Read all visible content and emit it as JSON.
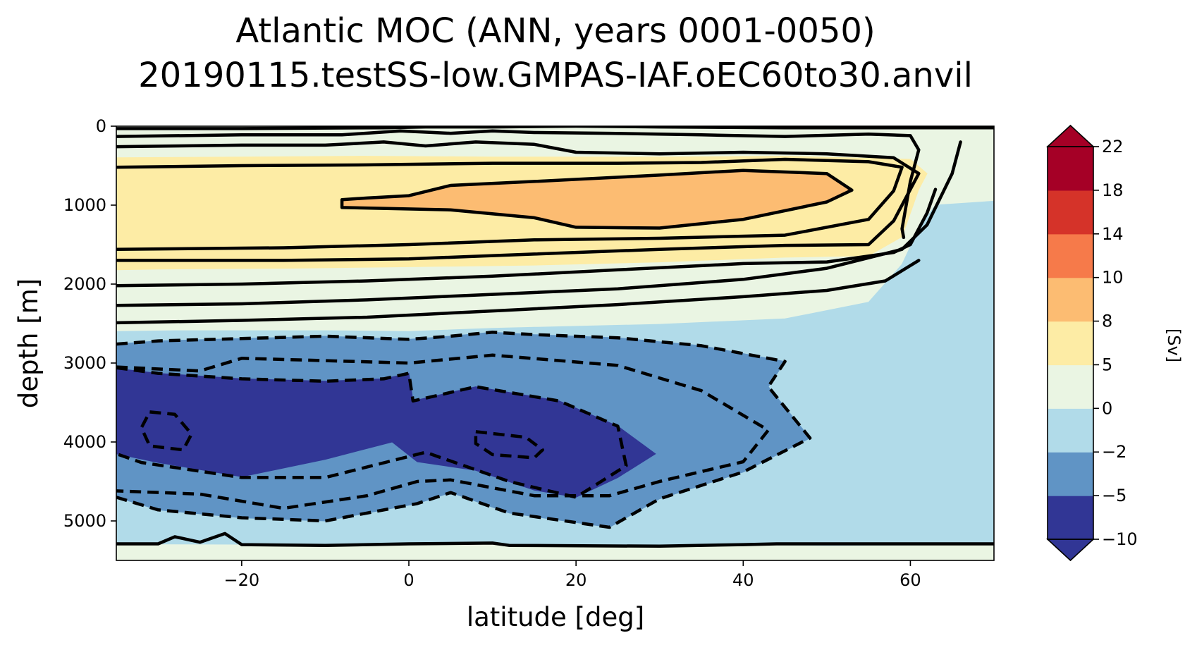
{
  "chart_data": {
    "type": "heatmap",
    "title_line1": "Atlantic MOC (ANN, years 0001-0050)",
    "title_line2": "20190115.testSS-low.GMPAS-IAF.oEC60to30.anvil",
    "xlabel": "latitude [deg]",
    "ylabel": "depth [m]",
    "colorbar_label": "[Sv]",
    "xlim": [
      -35,
      70
    ],
    "ylim": [
      5500,
      0
    ],
    "x_ticks": [
      -20,
      0,
      20,
      40,
      60
    ],
    "x_tick_labels": [
      "−20",
      "0",
      "20",
      "40",
      "60"
    ],
    "y_ticks": [
      0,
      1000,
      2000,
      3000,
      4000,
      5000
    ],
    "y_tick_labels": [
      "0",
      "1000",
      "2000",
      "3000",
      "4000",
      "5000"
    ],
    "levels": [
      -10,
      -5,
      -2,
      0,
      5,
      8,
      10,
      14,
      18,
      22
    ],
    "level_labels": [
      "−10",
      "−5",
      "−2",
      "0",
      "5",
      "8",
      "10",
      "14",
      "18",
      "22"
    ],
    "colors": [
      "#313695",
      "#6094c5",
      "#b1dbe9",
      "#eaf5e3",
      "#fdeca5",
      "#fcbc72",
      "#f67a4a",
      "#d53329",
      "#a50026"
    ],
    "colorbar_extend": "both",
    "regions": [
      {
        "level": "0 to 5",
        "color": "#eaf5e3",
        "points": [
          [
            -35,
            0
          ],
          [
            70,
            0
          ],
          [
            70,
            5500
          ],
          [
            -35,
            5500
          ]
        ]
      },
      {
        "level": "-2 to 0",
        "color": "#b1dbe9",
        "points": [
          [
            -35,
            2600
          ],
          [
            -28,
            2590
          ],
          [
            -10,
            2590
          ],
          [
            0,
            2600
          ],
          [
            10,
            2560
          ],
          [
            30,
            2510
          ],
          [
            45,
            2440
          ],
          [
            55,
            2230
          ],
          [
            59,
            1750
          ],
          [
            61,
            1300
          ],
          [
            63,
            1000
          ],
          [
            70,
            950
          ],
          [
            70,
            5300
          ],
          [
            50,
            5310
          ],
          [
            40,
            5300
          ],
          [
            30,
            5310
          ],
          [
            15,
            5300
          ],
          [
            10,
            5280
          ],
          [
            0,
            5290
          ],
          [
            -10,
            5310
          ],
          [
            -20,
            5295
          ],
          [
            -35,
            5290
          ]
        ]
      },
      {
        "level": "-5 to -2",
        "color": "#6094c5",
        "points": [
          [
            -35,
            2760
          ],
          [
            -30,
            2720
          ],
          [
            -20,
            2690
          ],
          [
            -10,
            2660
          ],
          [
            0,
            2700
          ],
          [
            5,
            2660
          ],
          [
            10,
            2610
          ],
          [
            15,
            2640
          ],
          [
            25,
            2680
          ],
          [
            35,
            2780
          ],
          [
            45,
            2980
          ],
          [
            43,
            3300
          ],
          [
            48,
            3950
          ],
          [
            40,
            4380
          ],
          [
            30,
            4720
          ],
          [
            24,
            5080
          ],
          [
            12,
            4900
          ],
          [
            5,
            4640
          ],
          [
            1,
            4780
          ],
          [
            -5,
            4900
          ],
          [
            -10,
            5000
          ],
          [
            -20,
            4960
          ],
          [
            -30,
            4860
          ],
          [
            -35,
            4700
          ]
        ]
      },
      {
        "level": "-10 to -5",
        "color": "#313695",
        "points": [
          [
            -35,
            3070
          ],
          [
            -30,
            3130
          ],
          [
            -20,
            3200
          ],
          [
            -10,
            3230
          ],
          [
            -3,
            3200
          ],
          [
            0,
            3130
          ],
          [
            0.5,
            3480
          ],
          [
            8,
            3300
          ],
          [
            18,
            3480
          ],
          [
            25,
            3800
          ],
          [
            29.5,
            4150
          ],
          [
            25,
            4450
          ],
          [
            20,
            4700
          ],
          [
            15,
            4610
          ],
          [
            8,
            4360
          ],
          [
            1,
            4250
          ],
          [
            -2,
            4000
          ],
          [
            -10,
            4220
          ],
          [
            -20,
            4440
          ],
          [
            -30,
            4260
          ],
          [
            -35,
            4150
          ]
        ]
      },
      {
        "level": "5 to 8",
        "color": "#fdeca5",
        "points": [
          [
            -35,
            400
          ],
          [
            -20,
            390
          ],
          [
            -5,
            380
          ],
          [
            10,
            390
          ],
          [
            30,
            390
          ],
          [
            45,
            380
          ],
          [
            60,
            420
          ],
          [
            62,
            600
          ],
          [
            61,
            800
          ],
          [
            59,
            1400
          ],
          [
            55,
            1640
          ],
          [
            45,
            1660
          ],
          [
            30,
            1720
          ],
          [
            15,
            1760
          ],
          [
            0,
            1780
          ],
          [
            -15,
            1800
          ],
          [
            -30,
            1810
          ],
          [
            -35,
            1820
          ]
        ]
      },
      {
        "level": "8 to 10",
        "color": "#fcbc72",
        "points": [
          [
            -8,
            930
          ],
          [
            -5,
            910
          ],
          [
            0,
            880
          ],
          [
            5,
            750
          ],
          [
            15,
            700
          ],
          [
            30,
            620
          ],
          [
            40,
            560
          ],
          [
            50,
            600
          ],
          [
            53,
            810
          ],
          [
            50,
            960
          ],
          [
            40,
            1180
          ],
          [
            30,
            1290
          ],
          [
            20,
            1280
          ],
          [
            15,
            1160
          ],
          [
            5,
            1060
          ],
          [
            -8,
            1030
          ]
        ]
      }
    ],
    "contours_positive": [
      [
        [
          -35,
          30
        ],
        [
          -20,
          30
        ],
        [
          -3,
          20
        ],
        [
          2,
          10
        ],
        [
          10,
          10
        ],
        [
          20,
          0
        ],
        [
          30,
          10
        ],
        [
          45,
          20
        ],
        [
          70,
          20
        ]
      ],
      [
        [
          -35,
          130
        ],
        [
          -20,
          110
        ],
        [
          -8,
          110
        ],
        [
          -1,
          60
        ],
        [
          5,
          90
        ],
        [
          10,
          60
        ],
        [
          15,
          80
        ],
        [
          24,
          90
        ],
        [
          35,
          110
        ],
        [
          45,
          130
        ],
        [
          55,
          100
        ],
        [
          60,
          120
        ],
        [
          61,
          300
        ],
        [
          60,
          700
        ],
        [
          59,
          1300
        ],
        [
          59.2,
          1410
        ]
      ],
      [
        [
          -35,
          260
        ],
        [
          -20,
          240
        ],
        [
          -10,
          240
        ],
        [
          -3,
          200
        ],
        [
          2,
          250
        ],
        [
          8,
          200
        ],
        [
          15,
          230
        ],
        [
          20,
          330
        ],
        [
          30,
          350
        ],
        [
          40,
          330
        ],
        [
          50,
          350
        ],
        [
          58,
          400
        ],
        [
          61,
          600
        ],
        [
          60,
          800
        ],
        [
          58,
          1200
        ],
        [
          55,
          1500
        ],
        [
          45,
          1510
        ],
        [
          30,
          1560
        ],
        [
          15,
          1620
        ],
        [
          0,
          1680
        ],
        [
          -15,
          1700
        ],
        [
          -35,
          1700
        ]
      ],
      [
        [
          -35,
          520
        ],
        [
          -20,
          500
        ],
        [
          -5,
          490
        ],
        [
          10,
          470
        ],
        [
          25,
          470
        ],
        [
          35,
          460
        ],
        [
          45,
          420
        ],
        [
          55,
          450
        ],
        [
          59,
          520
        ],
        [
          58,
          820
        ],
        [
          55,
          1180
        ],
        [
          45,
          1380
        ],
        [
          30,
          1420
        ],
        [
          15,
          1440
        ],
        [
          0,
          1500
        ],
        [
          -15,
          1540
        ],
        [
          -35,
          1560
        ]
      ],
      [
        [
          -8,
          930
        ],
        [
          -5,
          910
        ],
        [
          0,
          880
        ],
        [
          5,
          750
        ],
        [
          15,
          700
        ],
        [
          30,
          620
        ],
        [
          40,
          560
        ],
        [
          50,
          600
        ],
        [
          53,
          810
        ],
        [
          50,
          960
        ],
        [
          40,
          1180
        ],
        [
          30,
          1290
        ],
        [
          20,
          1280
        ],
        [
          15,
          1160
        ],
        [
          5,
          1060
        ],
        [
          -8,
          1030
        ],
        [
          -8,
          930
        ]
      ],
      [
        [
          -35,
          2020
        ],
        [
          -20,
          2000
        ],
        [
          -5,
          1960
        ],
        [
          10,
          1900
        ],
        [
          25,
          1820
        ],
        [
          40,
          1740
        ],
        [
          50,
          1720
        ],
        [
          58,
          1600
        ],
        [
          60,
          1500
        ],
        [
          62,
          1100
        ],
        [
          63,
          800
        ]
      ],
      [
        [
          -35,
          2270
        ],
        [
          -20,
          2250
        ],
        [
          -5,
          2200
        ],
        [
          10,
          2130
        ],
        [
          25,
          2060
        ],
        [
          40,
          1940
        ],
        [
          50,
          1800
        ],
        [
          59,
          1560
        ],
        [
          62,
          1250
        ],
        [
          65,
          600
        ],
        [
          66,
          200
        ]
      ],
      [
        [
          -35,
          2490
        ],
        [
          -20,
          2460
        ],
        [
          -5,
          2420
        ],
        [
          10,
          2340
        ],
        [
          25,
          2260
        ],
        [
          40,
          2160
        ],
        [
          50,
          2080
        ],
        [
          57,
          1960
        ],
        [
          61,
          1700
        ]
      ],
      [
        [
          -35,
          5290
        ],
        [
          -30,
          5290
        ],
        [
          -28,
          5200
        ],
        [
          -25,
          5270
        ],
        [
          -22,
          5160
        ],
        [
          -20,
          5300
        ],
        [
          -10,
          5310
        ],
        [
          0,
          5290
        ],
        [
          10,
          5280
        ],
        [
          12,
          5310
        ],
        [
          30,
          5320
        ],
        [
          40,
          5300
        ],
        [
          44,
          5290
        ],
        [
          70,
          5290
        ]
      ]
    ],
    "contours_negative": [
      [
        [
          -35,
          2760
        ],
        [
          -30,
          2720
        ],
        [
          -20,
          2690
        ],
        [
          -10,
          2660
        ],
        [
          0,
          2700
        ],
        [
          5,
          2660
        ],
        [
          10,
          2610
        ],
        [
          15,
          2640
        ],
        [
          25,
          2680
        ],
        [
          35,
          2780
        ],
        [
          45,
          2980
        ],
        [
          43,
          3300
        ],
        [
          48,
          3950
        ],
        [
          40,
          4380
        ],
        [
          30,
          4720
        ],
        [
          24,
          5080
        ],
        [
          12,
          4900
        ],
        [
          5,
          4640
        ],
        [
          1,
          4780
        ],
        [
          -5,
          4900
        ],
        [
          -10,
          5000
        ],
        [
          -20,
          4960
        ],
        [
          -30,
          4860
        ],
        [
          -35,
          4700
        ]
      ],
      [
        [
          -35,
          3050
        ],
        [
          -25,
          3100
        ],
        [
          -20,
          2940
        ],
        [
          -10,
          2970
        ],
        [
          0,
          3000
        ],
        [
          10,
          2900
        ],
        [
          25,
          3030
        ],
        [
          35,
          3350
        ],
        [
          43,
          3850
        ],
        [
          40,
          4250
        ],
        [
          30,
          4500
        ],
        [
          24,
          4680
        ],
        [
          15,
          4680
        ],
        [
          5,
          4480
        ],
        [
          1,
          4500
        ],
        [
          -5,
          4680
        ],
        [
          -15,
          4840
        ],
        [
          -25,
          4660
        ],
        [
          -35,
          4620
        ]
      ],
      [
        [
          -35,
          3060
        ],
        [
          -30,
          3130
        ],
        [
          -20,
          3200
        ],
        [
          -10,
          3230
        ],
        [
          -3,
          3200
        ],
        [
          0,
          3130
        ],
        [
          0.5,
          3480
        ],
        [
          8,
          3300
        ],
        [
          18,
          3480
        ],
        [
          25,
          3800
        ],
        [
          26,
          4300
        ],
        [
          20,
          4700
        ],
        [
          12,
          4500
        ],
        [
          2,
          4130
        ],
        [
          -10,
          4450
        ],
        [
          -20,
          4450
        ],
        [
          -32,
          4260
        ],
        [
          -35,
          4150
        ]
      ],
      [
        [
          -31,
          3620
        ],
        [
          -28,
          3650
        ],
        [
          -26,
          3900
        ],
        [
          -27,
          4100
        ],
        [
          -31,
          4050
        ],
        [
          -32,
          3820
        ],
        [
          -31,
          3620
        ]
      ],
      [
        [
          8,
          3870
        ],
        [
          14,
          3940
        ],
        [
          16,
          4100
        ],
        [
          15,
          4200
        ],
        [
          10,
          4160
        ],
        [
          8,
          4020
        ],
        [
          8,
          3870
        ]
      ]
    ]
  }
}
